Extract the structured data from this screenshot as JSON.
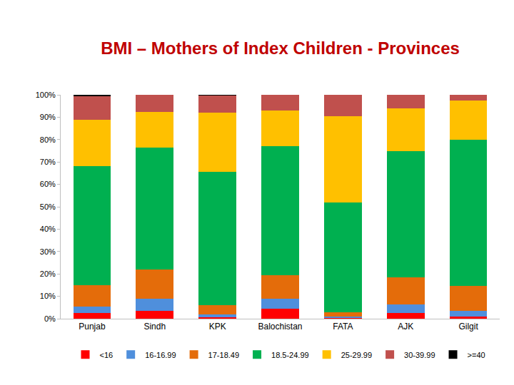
{
  "chart_data": {
    "type": "bar",
    "stacked": true,
    "title": "BMI – Mothers of Index Children - Provinces",
    "categories": [
      "Punjab",
      "Sindh",
      "KPK",
      "Balochistan",
      "FATA",
      "AJK",
      "Gilgit"
    ],
    "series": [
      {
        "name": "<16",
        "color": "#ff0000",
        "values": [
          2.5,
          3.5,
          0.5,
          4.5,
          0.3,
          2.5,
          1
        ]
      },
      {
        "name": "16-16.99",
        "color": "#4f8fdc",
        "values": [
          3,
          5.5,
          1.5,
          4.5,
          0.7,
          4,
          2.5
        ]
      },
      {
        "name": "17-18.49",
        "color": "#e46c0a",
        "values": [
          9.5,
          13,
          4,
          10.5,
          2,
          12,
          11
        ]
      },
      {
        "name": "18.5-24.99",
        "color": "#00b050",
        "values": [
          53,
          54.5,
          59.5,
          57.5,
          49,
          56.5,
          65.5
        ]
      },
      {
        "name": "25-29.99",
        "color": "#ffc000",
        "values": [
          21,
          16,
          26.5,
          16,
          38.5,
          19,
          17.5
        ]
      },
      {
        "name": "30-39.99",
        "color": "#c0504d",
        "values": [
          10.5,
          7.5,
          7.7,
          7,
          9.5,
          6,
          2.5
        ]
      },
      {
        "name": ">=40",
        "color": "#000000",
        "values": [
          0.5,
          0,
          0.3,
          0,
          0,
          0,
          0
        ]
      }
    ],
    "ylim": [
      0,
      100
    ],
    "yticks": [
      {
        "value": 0,
        "label": "0%"
      },
      {
        "value": 10,
        "label": "10%"
      },
      {
        "value": 20,
        "label": "20%"
      },
      {
        "value": 30,
        "label": "30%"
      },
      {
        "value": 40,
        "label": "40%"
      },
      {
        "value": 50,
        "label": "50%"
      },
      {
        "value": 60,
        "label": "60%"
      },
      {
        "value": 70,
        "label": "70%"
      },
      {
        "value": 80,
        "label": "80%"
      },
      {
        "value": 90,
        "label": "90%"
      },
      {
        "value": 100,
        "label": "100%"
      }
    ],
    "grid": false,
    "legend": "bottom"
  }
}
